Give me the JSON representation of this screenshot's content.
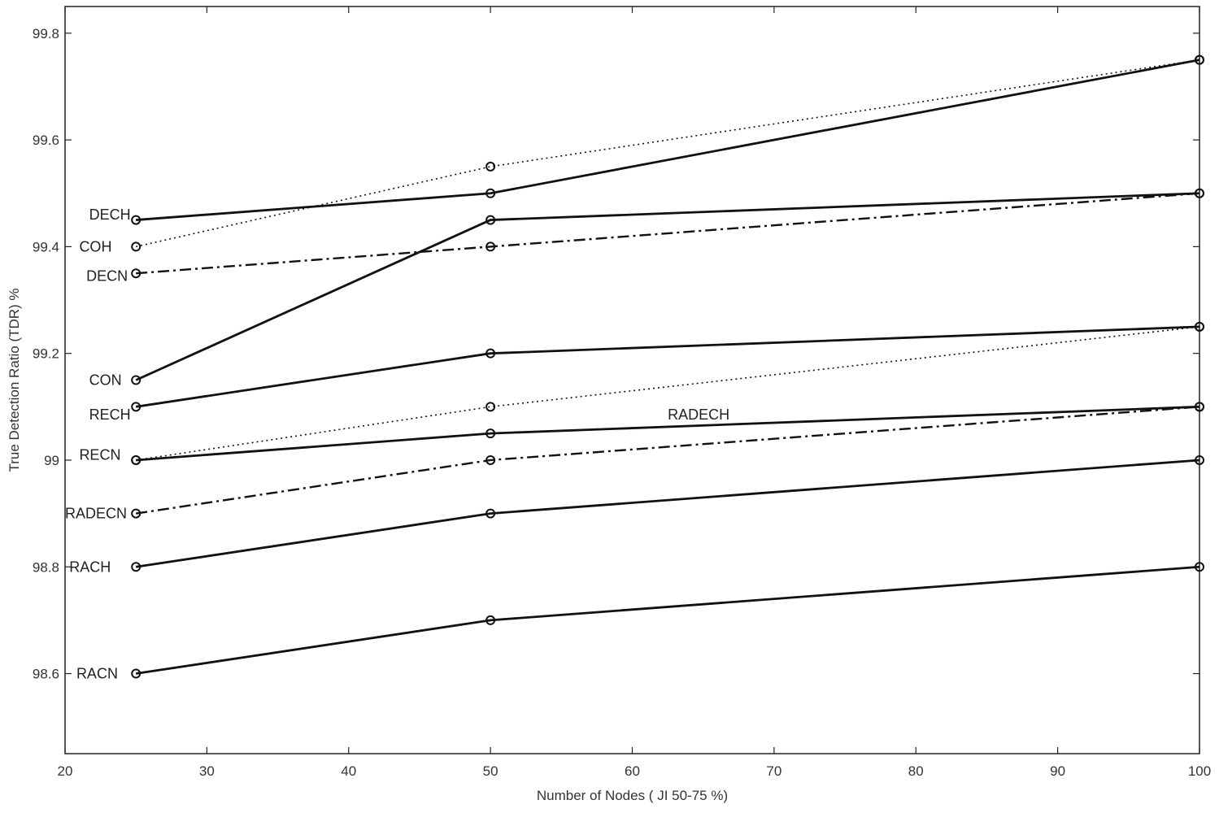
{
  "chart_data": {
    "type": "line",
    "title": "",
    "xlabel": "Number of Nodes ( JI 50-75 %)",
    "ylabel": "True Detection Ratio (TDR) %",
    "xlim": [
      20,
      100
    ],
    "ylim": [
      98.45,
      99.85
    ],
    "xticks": [
      20,
      30,
      40,
      50,
      60,
      70,
      80,
      90,
      100
    ],
    "yticks": [
      98.6,
      98.8,
      99,
      99.2,
      99.4,
      99.6,
      99.8
    ],
    "ytick_labels": [
      "98.6",
      "98.8",
      "99",
      "99.2",
      "99.4",
      "99.6",
      "99.8"
    ],
    "grid": false,
    "legend": "none",
    "x": [
      25,
      50,
      100
    ],
    "series": [
      {
        "name": "DECH",
        "values": [
          99.45,
          99.5,
          99.75
        ],
        "style": "solid"
      },
      {
        "name": "COH",
        "values": [
          99.4,
          99.55,
          99.75
        ],
        "style": "dotted"
      },
      {
        "name": "DECN",
        "values": [
          99.35,
          99.4,
          99.5
        ],
        "style": "dashdot"
      },
      {
        "name": "CON",
        "values": [
          99.15,
          99.45,
          99.5
        ],
        "style": "solid"
      },
      {
        "name": "RECH",
        "values": [
          99.1,
          99.2,
          99.25
        ],
        "style": "solid"
      },
      {
        "name": "RECN",
        "values": [
          99.0,
          99.1,
          99.25
        ],
        "style": "dotted"
      },
      {
        "name": "RADECH",
        "values": [
          99.0,
          99.05,
          99.1
        ],
        "style": "solid"
      },
      {
        "name": "RADECN",
        "values": [
          98.9,
          99.0,
          99.1
        ],
        "style": "dashdot"
      },
      {
        "name": "RACH",
        "values": [
          98.8,
          98.9,
          99.0
        ],
        "style": "solid"
      },
      {
        "name": "RACN",
        "values": [
          98.6,
          98.7,
          98.8
        ],
        "style": "solid"
      }
    ],
    "annotations": [
      {
        "text": "DECH",
        "x": 21.7,
        "y": 99.46
      },
      {
        "text": "COH",
        "x": 21.0,
        "y": 99.4
      },
      {
        "text": "DECN",
        "x": 21.5,
        "y": 99.345
      },
      {
        "text": "CON",
        "x": 21.7,
        "y": 99.15
      },
      {
        "text": "RECH",
        "x": 21.7,
        "y": 99.085
      },
      {
        "text": "RECN",
        "x": 21.0,
        "y": 99.01
      },
      {
        "text": "RADECH",
        "x": 62.5,
        "y": 99.085
      },
      {
        "text": "RADECN",
        "x": 20.0,
        "y": 98.9
      },
      {
        "text": "RACH",
        "x": 20.3,
        "y": 98.8
      },
      {
        "text": "RACN",
        "x": 20.8,
        "y": 98.6
      }
    ]
  }
}
